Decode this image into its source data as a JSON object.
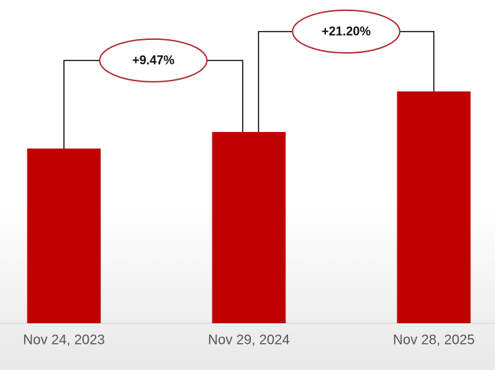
{
  "chart_data": {
    "type": "bar",
    "categories": [
      "Nov 24, 2023",
      "Nov 29, 2024",
      "Nov 28, 2025"
    ],
    "values": [
      100,
      109.47,
      132.68
    ],
    "color": "#c00000",
    "ylim": [
      0,
      185
    ],
    "annotations": [
      {
        "text": "+9.47%"
      },
      {
        "text": "+21.20%"
      }
    ]
  }
}
